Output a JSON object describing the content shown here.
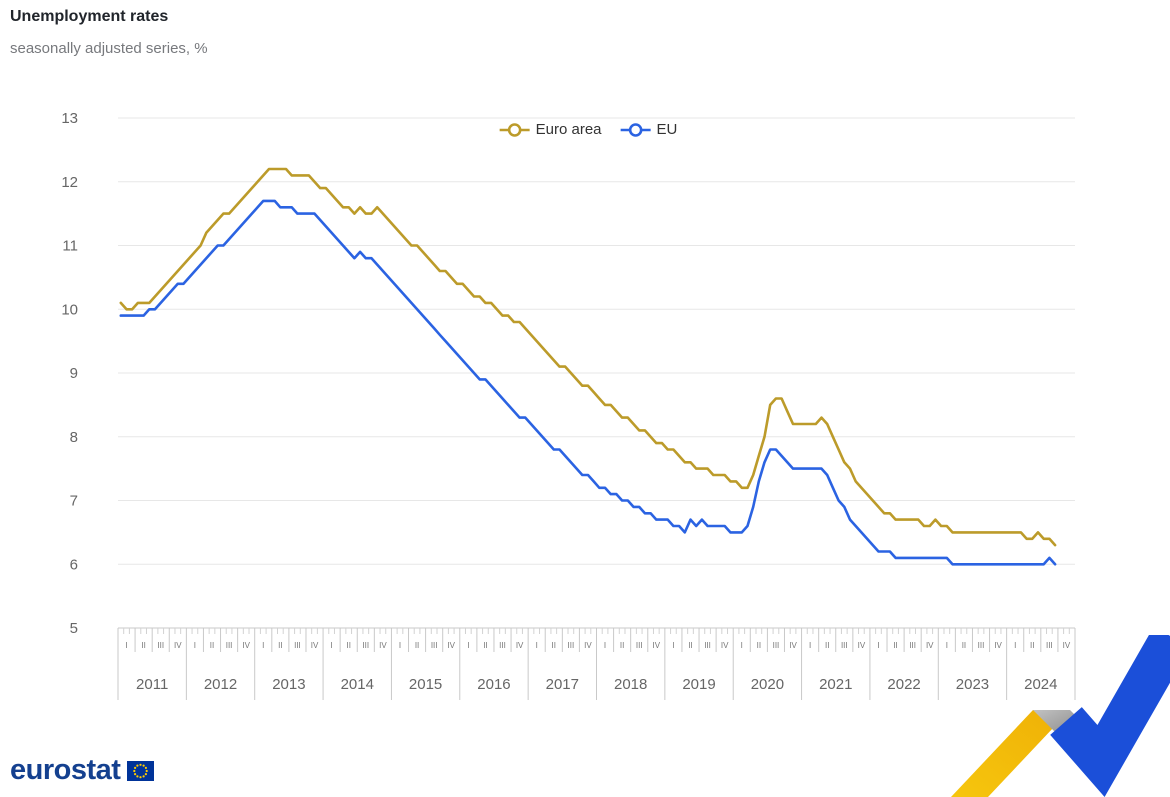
{
  "header": {
    "title": "Unemployment rates",
    "subtitle": "seasonally adjusted series, %"
  },
  "footer": {
    "brand": "eurostat",
    "logo_icon": "eu-flag-icon",
    "decoration_icon": "eurostat-ribbon-icon"
  },
  "colors": {
    "euro_area": "#BC9B2A",
    "eu": "#2B63E2",
    "grid": "#e7e7e7",
    "axis": "#c9c9c9",
    "tick_text": "#666666"
  },
  "chart_data": {
    "type": "line",
    "title": "Unemployment rates",
    "subtitle": "seasonally adjusted series, %",
    "unit": "%",
    "frequency": "monthly",
    "x_start": "2011-01",
    "x_end": "2024-09",
    "years": [
      "2011",
      "2012",
      "2013",
      "2014",
      "2015",
      "2016",
      "2017",
      "2018",
      "2019",
      "2020",
      "2021",
      "2022",
      "2023",
      "2024"
    ],
    "quarter_labels": [
      "I",
      "II",
      "III",
      "IV"
    ],
    "y_ticks": [
      5,
      6,
      7,
      8,
      9,
      10,
      11,
      12,
      13
    ],
    "ylim": [
      5,
      13
    ],
    "grid": "horizontal",
    "legend_position": "top-center",
    "series": [
      {
        "name": "Euro area",
        "color": "#BC9B2A",
        "values": [
          10.1,
          10.0,
          10.0,
          10.1,
          10.1,
          10.1,
          10.2,
          10.3,
          10.4,
          10.5,
          10.6,
          10.7,
          10.8,
          10.9,
          11.0,
          11.2,
          11.3,
          11.4,
          11.5,
          11.5,
          11.6,
          11.7,
          11.8,
          11.9,
          12.0,
          12.1,
          12.2,
          12.2,
          12.2,
          12.2,
          12.1,
          12.1,
          12.1,
          12.1,
          12.0,
          11.9,
          11.9,
          11.8,
          11.7,
          11.6,
          11.6,
          11.5,
          11.6,
          11.5,
          11.5,
          11.6,
          11.5,
          11.4,
          11.3,
          11.2,
          11.1,
          11.0,
          11.0,
          10.9,
          10.8,
          10.7,
          10.6,
          10.6,
          10.5,
          10.4,
          10.4,
          10.3,
          10.2,
          10.2,
          10.1,
          10.1,
          10.0,
          9.9,
          9.9,
          9.8,
          9.8,
          9.7,
          9.6,
          9.5,
          9.4,
          9.3,
          9.2,
          9.1,
          9.1,
          9.0,
          8.9,
          8.8,
          8.8,
          8.7,
          8.6,
          8.5,
          8.5,
          8.4,
          8.3,
          8.3,
          8.2,
          8.1,
          8.1,
          8.0,
          7.9,
          7.9,
          7.8,
          7.8,
          7.7,
          7.6,
          7.6,
          7.5,
          7.5,
          7.5,
          7.4,
          7.4,
          7.4,
          7.3,
          7.3,
          7.2,
          7.2,
          7.4,
          7.7,
          8.0,
          8.5,
          8.6,
          8.6,
          8.4,
          8.2,
          8.2,
          8.2,
          8.2,
          8.2,
          8.3,
          8.2,
          8.0,
          7.8,
          7.6,
          7.5,
          7.3,
          7.2,
          7.1,
          7.0,
          6.9,
          6.8,
          6.8,
          6.7,
          6.7,
          6.7,
          6.7,
          6.7,
          6.6,
          6.6,
          6.7,
          6.6,
          6.6,
          6.5,
          6.5,
          6.5,
          6.5,
          6.5,
          6.5,
          6.5,
          6.5,
          6.5,
          6.5,
          6.5,
          6.5,
          6.5,
          6.4,
          6.4,
          6.5,
          6.4,
          6.4,
          6.3
        ]
      },
      {
        "name": "EU",
        "color": "#2B63E2",
        "values": [
          9.9,
          9.9,
          9.9,
          9.9,
          9.9,
          10.0,
          10.0,
          10.1,
          10.2,
          10.3,
          10.4,
          10.4,
          10.5,
          10.6,
          10.7,
          10.8,
          10.9,
          11.0,
          11.0,
          11.1,
          11.2,
          11.3,
          11.4,
          11.5,
          11.6,
          11.7,
          11.7,
          11.7,
          11.6,
          11.6,
          11.6,
          11.5,
          11.5,
          11.5,
          11.5,
          11.4,
          11.3,
          11.2,
          11.1,
          11.0,
          10.9,
          10.8,
          10.9,
          10.8,
          10.8,
          10.7,
          10.6,
          10.5,
          10.4,
          10.3,
          10.2,
          10.1,
          10.0,
          9.9,
          9.8,
          9.7,
          9.6,
          9.5,
          9.4,
          9.3,
          9.2,
          9.1,
          9.0,
          8.9,
          8.9,
          8.8,
          8.7,
          8.6,
          8.5,
          8.4,
          8.3,
          8.3,
          8.2,
          8.1,
          8.0,
          7.9,
          7.8,
          7.8,
          7.7,
          7.6,
          7.5,
          7.4,
          7.4,
          7.3,
          7.2,
          7.2,
          7.1,
          7.1,
          7.0,
          7.0,
          6.9,
          6.9,
          6.8,
          6.8,
          6.7,
          6.7,
          6.7,
          6.6,
          6.6,
          6.5,
          6.7,
          6.6,
          6.7,
          6.6,
          6.6,
          6.6,
          6.6,
          6.5,
          6.5,
          6.5,
          6.6,
          6.9,
          7.3,
          7.6,
          7.8,
          7.8,
          7.7,
          7.6,
          7.5,
          7.5,
          7.5,
          7.5,
          7.5,
          7.5,
          7.4,
          7.2,
          7.0,
          6.9,
          6.7,
          6.6,
          6.5,
          6.4,
          6.3,
          6.2,
          6.2,
          6.2,
          6.1,
          6.1,
          6.1,
          6.1,
          6.1,
          6.1,
          6.1,
          6.1,
          6.1,
          6.1,
          6.0,
          6.0,
          6.0,
          6.0,
          6.0,
          6.0,
          6.0,
          6.0,
          6.0,
          6.0,
          6.0,
          6.0,
          6.0,
          6.0,
          6.0,
          6.0,
          6.0,
          6.1,
          6.0
        ]
      }
    ]
  }
}
